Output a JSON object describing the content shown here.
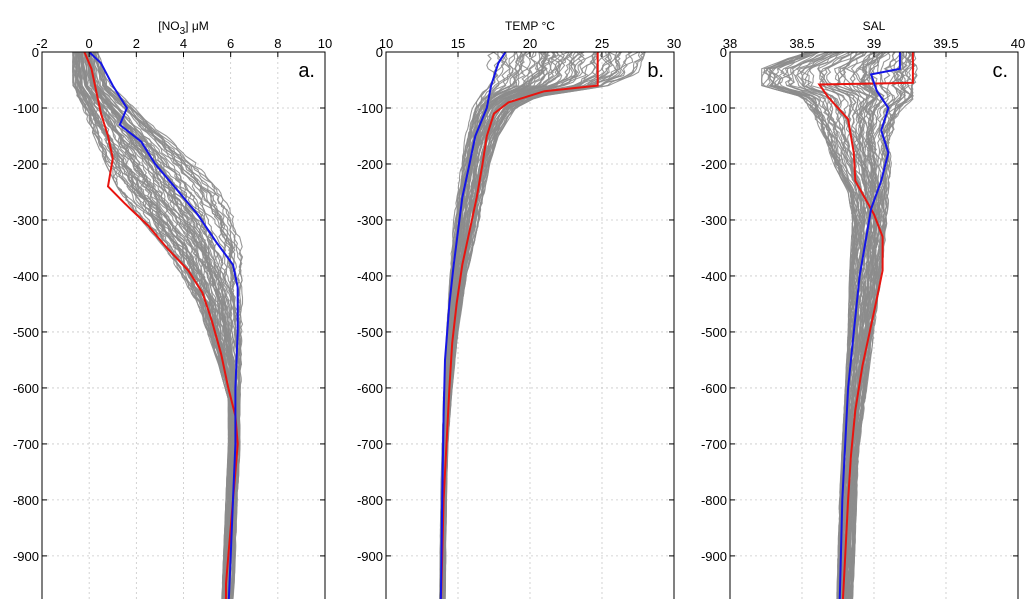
{
  "chart_data": [
    {
      "type": "line",
      "panel_label": "a.",
      "xlabel": "[NO3] μM",
      "xlabel_parts": {
        "base": "[NO",
        "sub": "3",
        "rest": "] μM"
      },
      "xlim": [
        -2,
        10
      ],
      "ylim": [
        -1000,
        0
      ],
      "x_ticks": [
        "-2",
        "0",
        "2",
        "4",
        "6",
        "8",
        "10"
      ],
      "y_ticks": [
        "0",
        "-100",
        "-200",
        "-300",
        "-400",
        "-500",
        "-600",
        "-700",
        "-800",
        "-900"
      ],
      "grid": true,
      "bundle_color": "#8c8c8c",
      "series": [
        {
          "color": "#e8140f",
          "points": [
            [
              -0.2,
              0
            ],
            [
              0.1,
              -30
            ],
            [
              0.3,
              -70
            ],
            [
              0.5,
              -110
            ],
            [
              0.8,
              -150
            ],
            [
              1.0,
              -190
            ],
            [
              0.8,
              -240
            ],
            [
              1.5,
              -270
            ],
            [
              2.5,
              -310
            ],
            [
              3.3,
              -350
            ],
            [
              4.2,
              -390
            ],
            [
              4.8,
              -430
            ],
            [
              5.2,
              -480
            ],
            [
              5.6,
              -540
            ],
            [
              5.9,
              -600
            ],
            [
              6.2,
              -650
            ],
            [
              6.3,
              -700
            ],
            [
              6.2,
              -750
            ],
            [
              6.1,
              -800
            ],
            [
              6.0,
              -850
            ],
            [
              5.9,
              -900
            ],
            [
              5.8,
              -950
            ],
            [
              5.8,
              -1000
            ]
          ]
        },
        {
          "color": "#1414e6",
          "points": [
            [
              0.0,
              0
            ],
            [
              0.5,
              -20
            ],
            [
              1.0,
              -60
            ],
            [
              1.6,
              -100
            ],
            [
              1.3,
              -130
            ],
            [
              2.2,
              -160
            ],
            [
              2.8,
              -200
            ],
            [
              3.6,
              -240
            ],
            [
              4.6,
              -290
            ],
            [
              5.4,
              -340
            ],
            [
              6.1,
              -380
            ],
            [
              6.3,
              -420
            ],
            [
              6.3,
              -500
            ],
            [
              6.2,
              -600
            ],
            [
              6.2,
              -700
            ],
            [
              6.1,
              -800
            ],
            [
              6.0,
              -900
            ],
            [
              5.9,
              -1000
            ]
          ]
        }
      ]
    },
    {
      "type": "line",
      "panel_label": "b.",
      "xlabel": "TEMP °C",
      "xlim": [
        10,
        30
      ],
      "ylim": [
        -1000,
        0
      ],
      "x_ticks": [
        "10",
        "15",
        "20",
        "25",
        "30"
      ],
      "y_ticks": [
        "0",
        "-100",
        "-200",
        "-300",
        "-400",
        "-500",
        "-600",
        "-700",
        "-800",
        "-900"
      ],
      "grid": true,
      "bundle_color": "#8c8c8c",
      "series": [
        {
          "color": "#e8140f",
          "points": [
            [
              24.7,
              0
            ],
            [
              24.7,
              -60
            ],
            [
              21.0,
              -70
            ],
            [
              18.5,
              -90
            ],
            [
              17.5,
              -110
            ],
            [
              17.0,
              -150
            ],
            [
              16.7,
              -200
            ],
            [
              16.3,
              -260
            ],
            [
              15.8,
              -320
            ],
            [
              15.3,
              -380
            ],
            [
              14.9,
              -450
            ],
            [
              14.6,
              -520
            ],
            [
              14.4,
              -600
            ],
            [
              14.2,
              -700
            ],
            [
              14.0,
              -800
            ],
            [
              13.9,
              -900
            ],
            [
              13.8,
              -1000
            ]
          ]
        },
        {
          "color": "#1414e6",
          "points": [
            [
              18.3,
              0
            ],
            [
              17.8,
              -20
            ],
            [
              17.3,
              -60
            ],
            [
              17.0,
              -100
            ],
            [
              16.2,
              -150
            ],
            [
              15.8,
              -200
            ],
            [
              15.3,
              -260
            ],
            [
              15.0,
              -320
            ],
            [
              14.7,
              -380
            ],
            [
              14.4,
              -450
            ],
            [
              14.1,
              -550
            ],
            [
              14.0,
              -650
            ],
            [
              13.9,
              -800
            ],
            [
              13.8,
              -1000
            ]
          ]
        }
      ]
    },
    {
      "type": "line",
      "panel_label": "c.",
      "xlabel": "SAL",
      "xlim": [
        38,
        40
      ],
      "ylim": [
        -1000,
        0
      ],
      "x_ticks": [
        "38",
        "38.5",
        "39",
        "39.5",
        "40"
      ],
      "y_ticks": [
        "0",
        "-100",
        "-200",
        "-300",
        "-400",
        "-500",
        "-600",
        "-700",
        "-800",
        "-900"
      ],
      "grid": true,
      "bundle_color": "#8c8c8c",
      "series": [
        {
          "color": "#e8140f",
          "points": [
            [
              39.27,
              0
            ],
            [
              39.27,
              -55
            ],
            [
              38.62,
              -58
            ],
            [
              38.68,
              -80
            ],
            [
              38.82,
              -120
            ],
            [
              38.86,
              -180
            ],
            [
              38.87,
              -230
            ],
            [
              39.0,
              -290
            ],
            [
              39.06,
              -330
            ],
            [
              39.06,
              -390
            ],
            [
              39.02,
              -440
            ],
            [
              38.97,
              -500
            ],
            [
              38.92,
              -560
            ],
            [
              38.87,
              -640
            ],
            [
              38.84,
              -720
            ],
            [
              38.82,
              -800
            ],
            [
              38.8,
              -900
            ],
            [
              38.78,
              -1000
            ]
          ]
        },
        {
          "color": "#1414e6",
          "points": [
            [
              39.18,
              0
            ],
            [
              39.18,
              -30
            ],
            [
              38.98,
              -40
            ],
            [
              39.02,
              -70
            ],
            [
              39.1,
              -100
            ],
            [
              39.05,
              -140
            ],
            [
              39.1,
              -180
            ],
            [
              39.05,
              -230
            ],
            [
              38.98,
              -280
            ],
            [
              38.94,
              -340
            ],
            [
              38.9,
              -400
            ],
            [
              38.86,
              -500
            ],
            [
              38.82,
              -600
            ],
            [
              38.8,
              -700
            ],
            [
              38.78,
              -800
            ],
            [
              38.77,
              -900
            ],
            [
              38.76,
              -1000
            ]
          ]
        }
      ]
    }
  ]
}
